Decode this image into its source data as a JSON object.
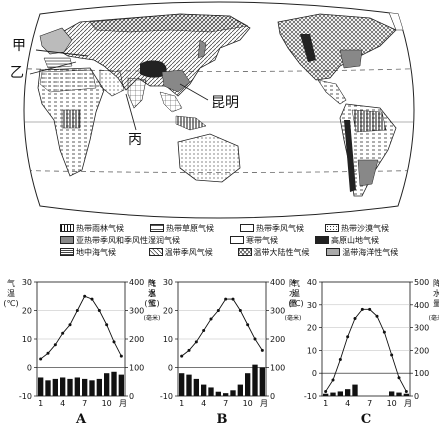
{
  "map": {
    "labels": {
      "jia": "甲",
      "yi": "乙",
      "bing": "丙",
      "kunming": "昆明"
    }
  },
  "legend": {
    "rows": [
      [
        {
          "name": "热带雨林气候",
          "pattern": "vlines"
        },
        {
          "name": "热带草原气候",
          "pattern": "hdash"
        },
        {
          "name": "热带季风气候",
          "pattern": "box"
        },
        {
          "name": "热带沙漠气候",
          "pattern": "dots"
        }
      ],
      [
        {
          "name": "亚热带季风和季风性湿润气候",
          "pattern": "gray"
        },
        {
          "name": "寒带气候",
          "pattern": "white"
        },
        {
          "name": "高原山地气候",
          "pattern": "black"
        }
      ],
      [
        {
          "name": "地中海气候",
          "pattern": "hlines"
        },
        {
          "name": "温带季风气候",
          "pattern": "diag"
        },
        {
          "name": "温带大陆性气候",
          "pattern": "crossdiag"
        },
        {
          "name": "温带海洋性气候",
          "pattern": "lightgray"
        }
      ]
    ]
  },
  "chart_data": [
    {
      "type": "bar+line",
      "letter": "A",
      "x": [
        1,
        2,
        3,
        4,
        5,
        6,
        7,
        8,
        9,
        10,
        11,
        12
      ],
      "month_ticks": [
        "1",
        "4",
        "7",
        "10"
      ],
      "month_unit": "月",
      "temperature": [
        3,
        5,
        8,
        12,
        15,
        20,
        25,
        24,
        20,
        15,
        9,
        4
      ],
      "precipitation": [
        65,
        55,
        60,
        65,
        60,
        65,
        60,
        55,
        60,
        80,
        85,
        75
      ],
      "left_axis": {
        "label": [
          "气",
          "温",
          "(℃)"
        ],
        "range": [
          -10,
          30
        ],
        "ticks": [
          "30",
          "20",
          "10",
          "0",
          "-10"
        ]
      },
      "right_axis": {
        "label": [
          "降",
          "水",
          "量",
          "(毫米)"
        ],
        "range": [
          0,
          400
        ],
        "ticks": [
          "400",
          "300",
          "200",
          "100",
          "0"
        ]
      }
    },
    {
      "type": "bar+line",
      "letter": "B",
      "x": [
        1,
        2,
        3,
        4,
        5,
        6,
        7,
        8,
        9,
        10,
        11,
        12
      ],
      "month_ticks": [
        "1",
        "4",
        "7",
        "10"
      ],
      "month_unit": "月",
      "temperature": [
        4,
        6,
        9,
        13,
        17,
        20,
        24,
        24,
        20,
        15,
        10,
        6
      ],
      "precipitation": [
        80,
        75,
        60,
        40,
        30,
        15,
        10,
        20,
        40,
        80,
        110,
        100
      ],
      "left_axis": {
        "label": [
          "气",
          "温",
          "(℃)"
        ],
        "range": [
          -10,
          30
        ],
        "ticks": [
          "30",
          "20",
          "10",
          "0",
          "-10"
        ]
      },
      "right_axis": {
        "label": [
          "降",
          "水",
          "量",
          "(毫米)"
        ],
        "range": [
          0,
          400
        ],
        "ticks": [
          "400",
          "300",
          "200",
          "100",
          "0"
        ]
      }
    },
    {
      "type": "bar+line",
      "letter": "C",
      "x": [
        1,
        2,
        3,
        4,
        5,
        6,
        7,
        8,
        9,
        10,
        11,
        12
      ],
      "month_ticks": [
        "1",
        "4",
        "7",
        "10"
      ],
      "month_unit": "月",
      "temperature": [
        -8,
        -3,
        6,
        16,
        24,
        28,
        28,
        25,
        18,
        8,
        -2,
        -8
      ],
      "precipitation": [
        10,
        15,
        20,
        30,
        50,
        0,
        0,
        0,
        0,
        20,
        15,
        10
      ],
      "left_axis": {
        "label": [
          "气",
          "温",
          "(℃)"
        ],
        "range": [
          -10,
          40
        ],
        "ticks": [
          "40",
          "30",
          "20",
          "10",
          "0",
          "-10"
        ]
      },
      "right_axis": {
        "label": [
          "降",
          "水",
          "量",
          "(毫米)"
        ],
        "range": [
          0,
          500
        ],
        "ticks": [
          "500",
          "400",
          "300",
          "200",
          "100",
          "0"
        ]
      }
    }
  ]
}
